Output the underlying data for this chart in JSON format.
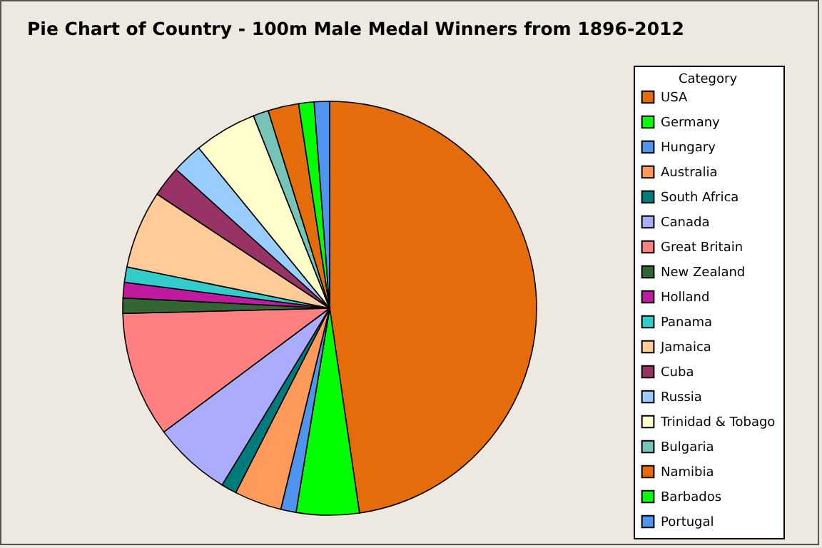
{
  "chart_data": {
    "type": "pie",
    "title": "Pie Chart of Country - 100m Male Medal Winners from 1896-2012",
    "legend_title": "Category",
    "legend": "right",
    "categories": [
      "USA",
      "Germany",
      "Hungary",
      "Australia",
      "South Africa",
      "Canada",
      "Great Britain",
      "New Zealand",
      "Holland",
      "Panama",
      "Jamaica",
      "Cuba",
      "Russia",
      "Trinidad & Tobago",
      "Bulgaria",
      "Namibia",
      "Barbados",
      "Portugal"
    ],
    "values": [
      47.7,
      4.9,
      1.2,
      3.7,
      1.2,
      6.1,
      9.8,
      1.2,
      1.2,
      1.2,
      6.1,
      2.4,
      2.4,
      4.9,
      1.2,
      2.4,
      1.2,
      1.2
    ],
    "colors": [
      "#e46c0a",
      "#00ff00",
      "#4f94ef",
      "#ff9a5a",
      "#007b7b",
      "#acacff",
      "#ff8080",
      "#336633",
      "#c01aa0",
      "#33cccc",
      "#ffcc99",
      "#993366",
      "#99ccff",
      "#ffffcc",
      "#76c4b8",
      "#e46c0a",
      "#00ff00",
      "#4f94ef"
    ]
  }
}
